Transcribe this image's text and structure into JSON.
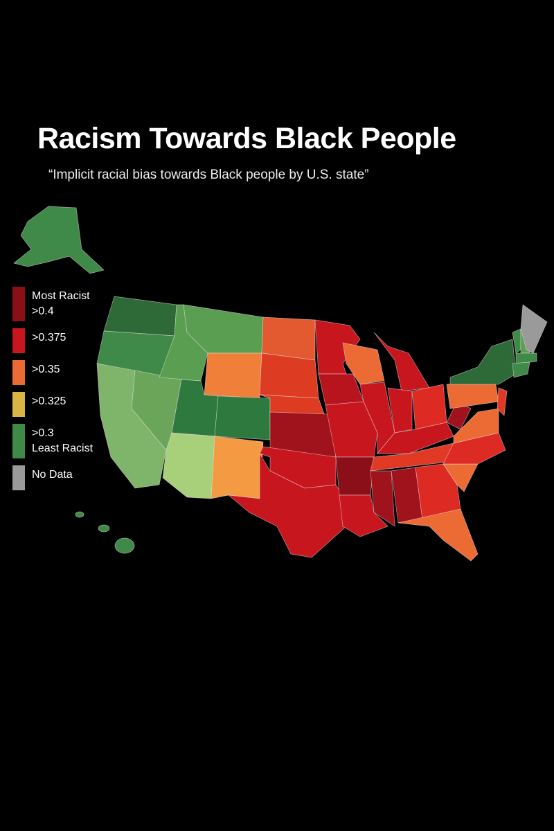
{
  "header": {
    "title": "Racism Towards Black People",
    "subtitle": "“Implicit racial bias towards Black people by U.S. state”"
  },
  "legend": {
    "items": [
      {
        "color": "#8a0f18",
        "labels": [
          "Most Racist",
          ">0.4"
        ]
      },
      {
        "color": "#c8161f",
        "labels": [
          ">0.375"
        ]
      },
      {
        "color": "#ec6b35",
        "labels": [
          ">0.35"
        ]
      },
      {
        "color": "#d9b545",
        "labels": [
          ">0.325"
        ]
      },
      {
        "color": "#3f8a48",
        "labels": [
          ">0.3",
          "Least Racist"
        ]
      },
      {
        "color": "#9a9a9a",
        "labels": [
          "No Data"
        ]
      }
    ]
  }
}
